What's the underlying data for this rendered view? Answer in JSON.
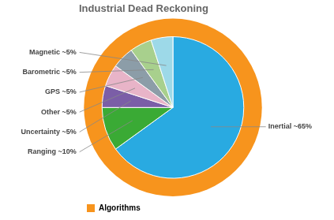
{
  "chart_data": {
    "type": "pie",
    "title": "Industrial Dead Reckoning",
    "categories": [
      "Inertial ~65%",
      "Ranging ~10%",
      "Uncertainty ~5%",
      "Other ~5%",
      "GPS ~5%",
      "Barometric ~5%",
      "Magnetic ~5%"
    ],
    "values": [
      65,
      10,
      5,
      5,
      5,
      5,
      5
    ],
    "colors": [
      "#29aae1",
      "#3aaa35",
      "#7b5ea7",
      "#e8b4c8",
      "#8c9da8",
      "#a8d08d",
      "#9dd9e8"
    ],
    "legend": "lower left",
    "series": [
      {
        "name": "Algorithms",
        "color": "#f7941d",
        "type": "ring"
      }
    ]
  }
}
